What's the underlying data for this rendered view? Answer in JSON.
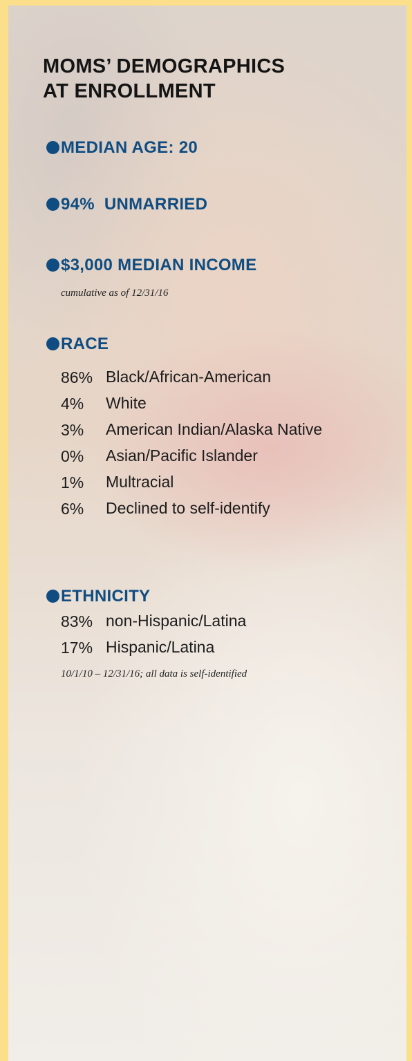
{
  "title_lines": [
    "MOMS’ DEMOGRAPHICS",
    "AT ENROLLMENT"
  ],
  "median_age": "MEDIAN AGE: 20",
  "unmarried": "94%  UNMARRIED",
  "income": {
    "heading": "$3,000 MEDIAN INCOME",
    "note": "cumulative as of 12/31/16"
  },
  "race": {
    "heading": "RACE",
    "rows": [
      [
        "86%",
        "Black/African-American"
      ],
      [
        "4%",
        "White"
      ],
      [
        "3%",
        "American Indian/Alaska Native"
      ],
      [
        "0%",
        "Asian/Pacific Islander"
      ],
      [
        "1%",
        "Multracial"
      ],
      [
        "6%",
        "Declined to self-identify"
      ]
    ]
  },
  "ethnicity": {
    "heading": "ETHNICITY",
    "rows": [
      [
        "83%",
        "non-Hispanic/Latina"
      ],
      [
        "17%",
        "Hispanic/Latina"
      ]
    ],
    "note": "10/1/10 – 12/31/16; all data is self-identified"
  }
}
